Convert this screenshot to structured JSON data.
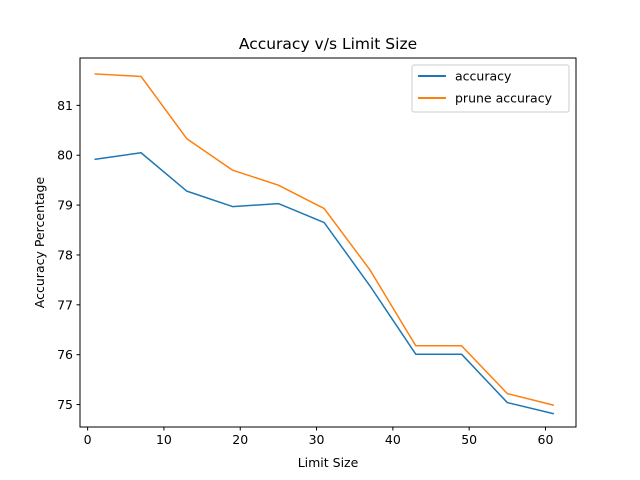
{
  "chart_data": {
    "type": "line",
    "title": "Accuracy v/s Limit Size",
    "xlabel": "Limit Size",
    "ylabel": "Accuracy Percentage",
    "xlim": [
      -1,
      64
    ],
    "ylim": [
      74.55,
      81.95
    ],
    "xticks": [
      0,
      10,
      20,
      30,
      40,
      50,
      60
    ],
    "yticks": [
      75,
      76,
      77,
      78,
      79,
      80,
      81
    ],
    "grid": false,
    "legend_position": "top-right",
    "x": [
      1,
      7,
      13,
      19,
      25,
      31,
      37,
      43,
      49,
      55,
      61
    ],
    "series": [
      {
        "name": "accuracy",
        "color": "#1f77b4",
        "values": [
          79.92,
          80.05,
          79.28,
          78.97,
          79.03,
          78.65,
          77.38,
          76.01,
          76.01,
          75.04,
          74.82
        ]
      },
      {
        "name": "prune accuracy",
        "color": "#ff7f0e",
        "values": [
          81.63,
          81.58,
          80.33,
          79.7,
          79.4,
          78.93,
          77.7,
          76.18,
          76.18,
          75.22,
          74.99
        ]
      }
    ]
  }
}
